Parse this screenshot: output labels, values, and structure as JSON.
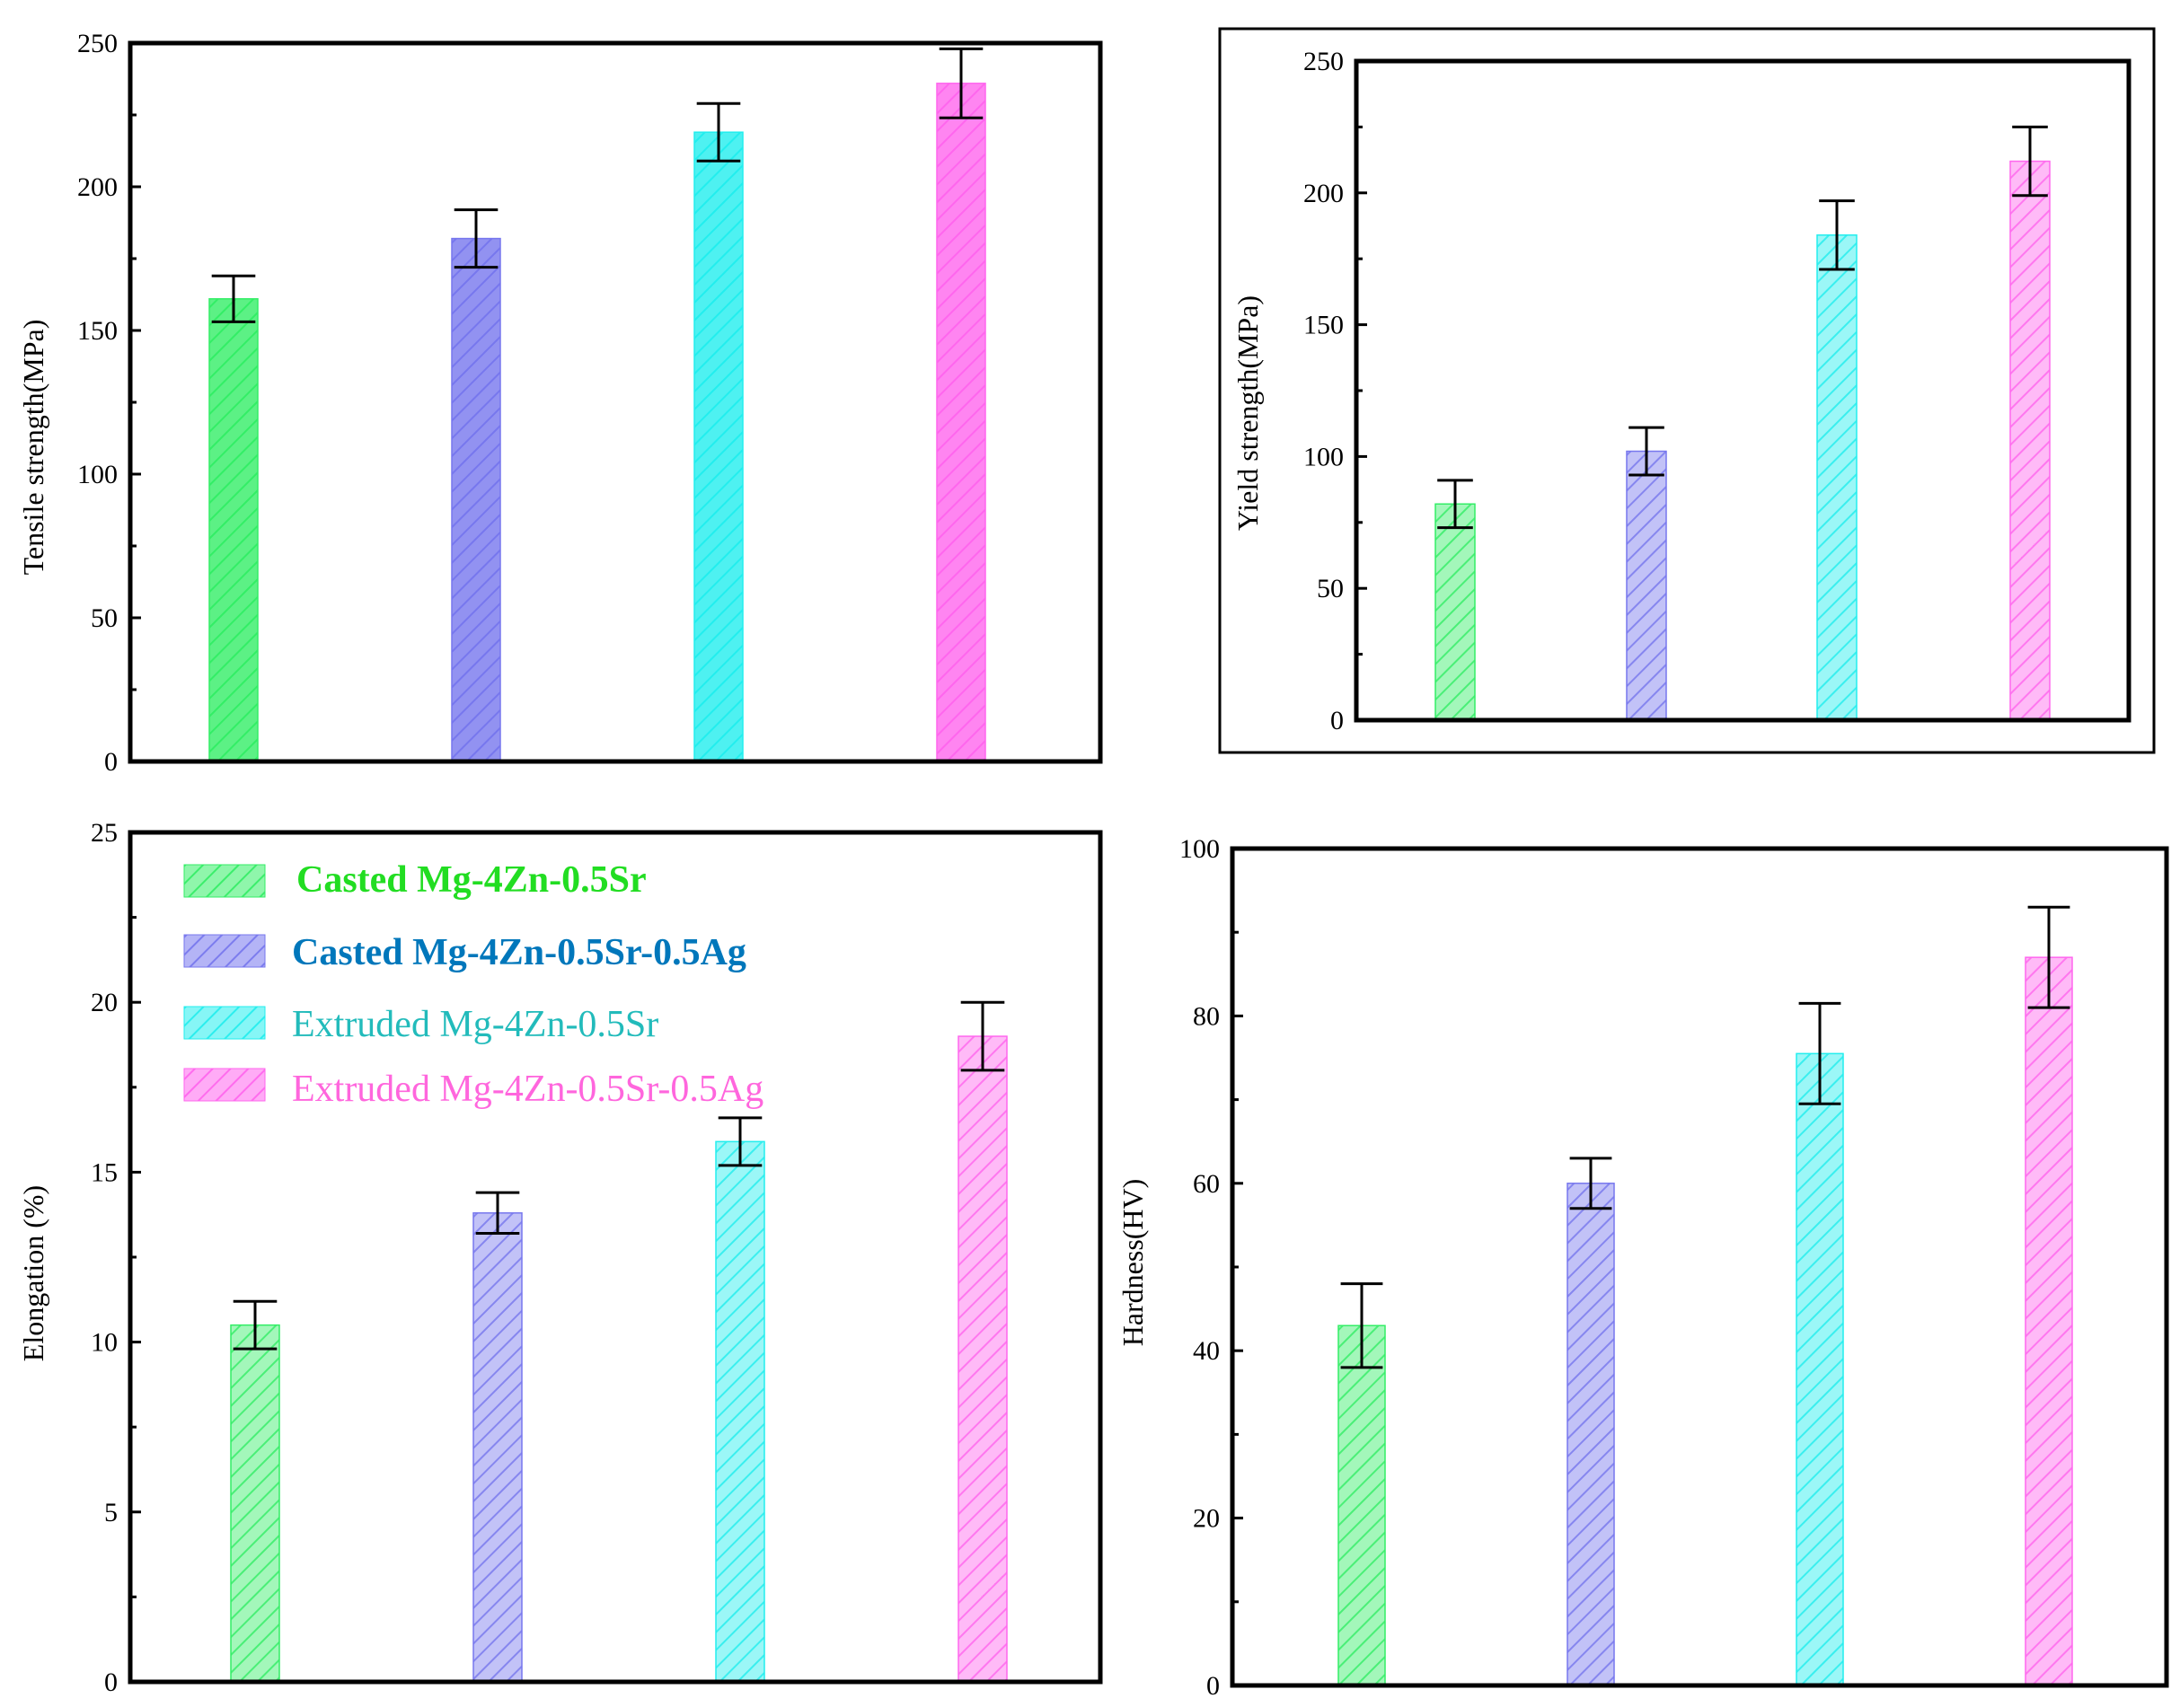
{
  "colors": {
    "casted_sr": "#33ee66",
    "casted_ag": "#7777ee",
    "extruded_sr": "#22eeee",
    "extruded_ag": "#ff66ee"
  },
  "legend": [
    {
      "label": "Casted Mg-4Zn-0.5Sr",
      "color": "#33ee66",
      "text_color": "#22dd22",
      "bold": true
    },
    {
      "label": "Casted Mg-4Zn-0.5Sr-0.5Ag",
      "color": "#7777ee",
      "text_color": "#0077bb",
      "bold": true
    },
    {
      "label": "Extruded Mg-4Zn-0.5Sr",
      "color": "#22eeee",
      "text_color": "#22bbbb",
      "bold": false
    },
    {
      "label": "Extruded Mg-4Zn-0.5Sr-0.5Ag",
      "color": "#ff66ee",
      "text_color": "#ff66dd",
      "bold": false
    }
  ],
  "chart_data": [
    {
      "id": "tensile",
      "type": "bar",
      "title": "",
      "xlabel": "",
      "ylabel": "Tensile strength(MPa)",
      "ylim": [
        0,
        250
      ],
      "yticks": [
        0,
        50,
        100,
        150,
        200,
        250
      ],
      "categories": [
        "Casted Mg-4Zn-0.5Sr",
        "Casted Mg-4Zn-0.5Sr-0.5Ag",
        "Extruded Mg-4Zn-0.5Sr",
        "Extruded Mg-4Zn-0.5Sr-0.5Ag"
      ],
      "values": [
        161,
        182,
        219,
        236
      ],
      "errors": [
        8,
        10,
        10,
        12
      ],
      "fill_opacity": 0.8
    },
    {
      "id": "yield",
      "type": "bar",
      "title": "",
      "xlabel": "",
      "ylabel": "Yield strength(MPa)",
      "ylim": [
        0,
        250
      ],
      "yticks": [
        0,
        50,
        100,
        150,
        200,
        250
      ],
      "categories": [
        "Casted Mg-4Zn-0.5Sr",
        "Casted Mg-4Zn-0.5Sr-0.5Ag",
        "Extruded Mg-4Zn-0.5Sr",
        "Extruded Mg-4Zn-0.5Sr-0.5Ag"
      ],
      "values": [
        82,
        102,
        184,
        212
      ],
      "errors": [
        9,
        9,
        13,
        13
      ],
      "fill_opacity": 0.45
    },
    {
      "id": "elongation",
      "type": "bar",
      "title": "",
      "xlabel": "",
      "ylabel": "Elongation (%)",
      "ylim": [
        0,
        25
      ],
      "yticks": [
        0,
        5,
        10,
        15,
        20,
        25
      ],
      "categories": [
        "Casted Mg-4Zn-0.5Sr",
        "Casted Mg-4Zn-0.5Sr-0.5Ag",
        "Extruded Mg-4Zn-0.5Sr",
        "Extruded Mg-4Zn-0.5Sr-0.5Ag"
      ],
      "values": [
        10.5,
        13.8,
        15.9,
        19.0
      ],
      "errors": [
        0.7,
        0.6,
        0.7,
        1.0
      ],
      "fill_opacity": 0.45
    },
    {
      "id": "hardness",
      "type": "bar",
      "title": "",
      "xlabel": "",
      "ylabel": "Hardness(HV)",
      "ylim": [
        0,
        100
      ],
      "yticks": [
        0,
        20,
        40,
        60,
        80,
        100
      ],
      "categories": [
        "Casted Mg-4Zn-0.5Sr",
        "Casted Mg-4Zn-0.5Sr-0.5Ag",
        "Extruded Mg-4Zn-0.5Sr",
        "Extruded Mg-4Zn-0.5Sr-0.5Ag"
      ],
      "values": [
        43,
        60,
        75.5,
        87
      ],
      "errors": [
        5,
        3,
        6,
        6
      ],
      "fill_opacity": 0.45
    }
  ]
}
